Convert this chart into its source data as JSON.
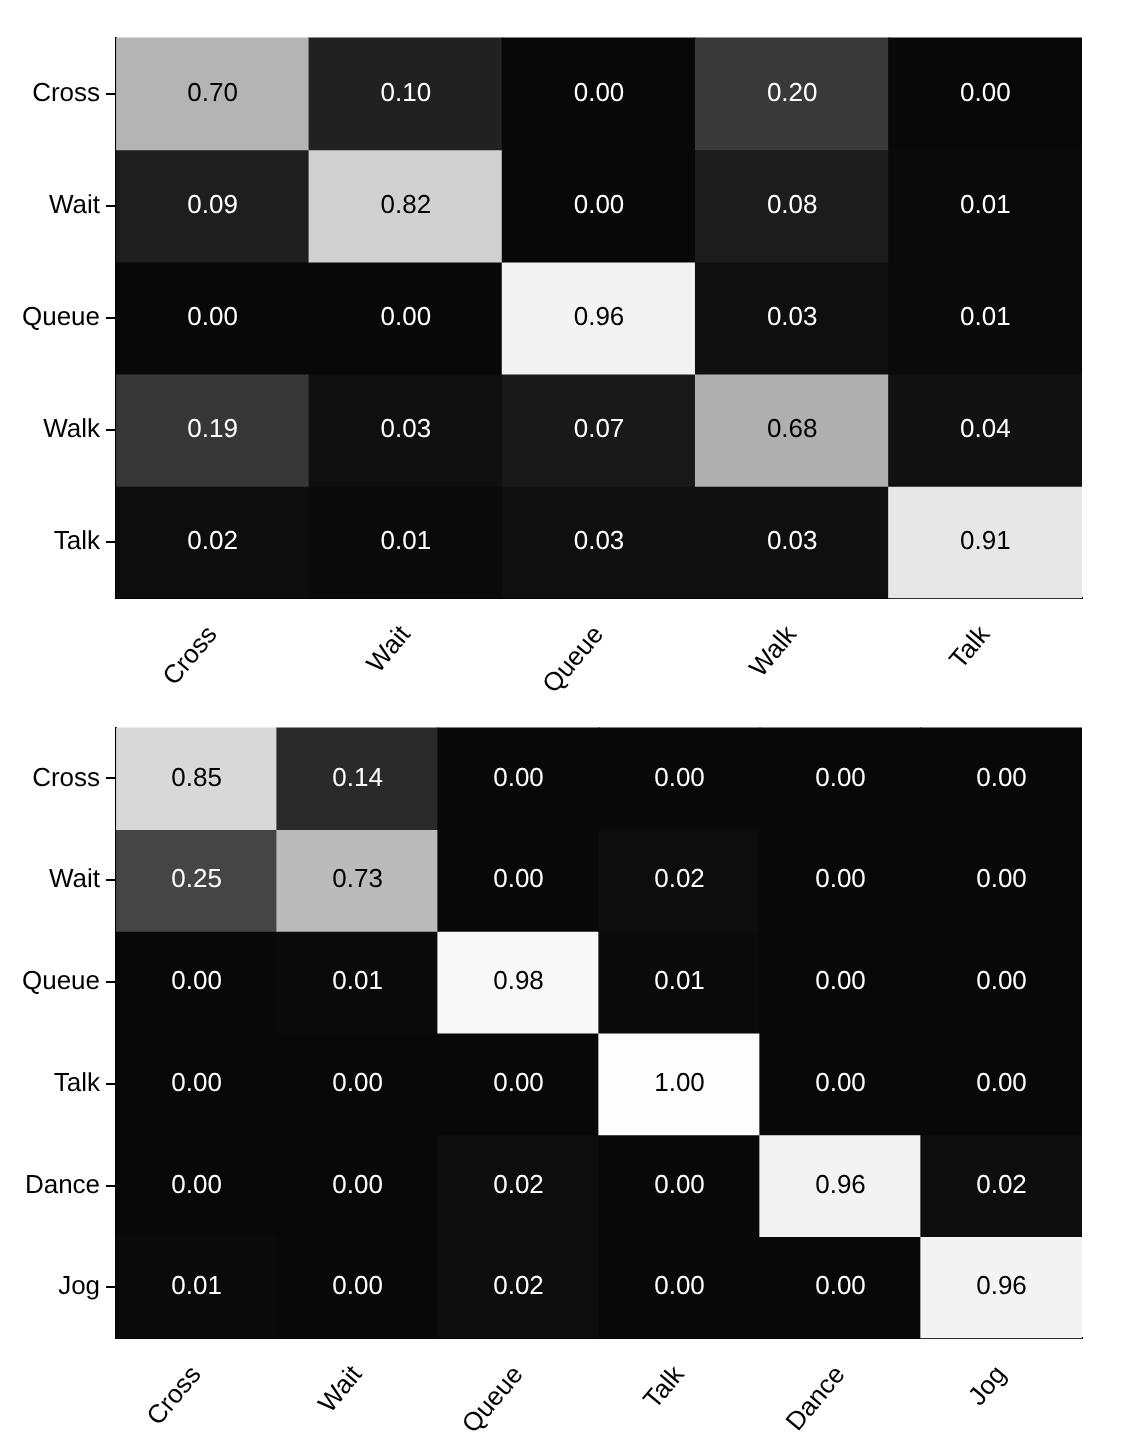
{
  "chart_data": [
    {
      "type": "heatmap",
      "categories": [
        "Cross",
        "Wait",
        "Queue",
        "Walk",
        "Talk"
      ],
      "y_categories": [
        "Cross",
        "Wait",
        "Queue",
        "Walk",
        "Talk"
      ],
      "cells": [
        [
          0.7,
          0.1,
          0.0,
          0.2,
          0.0
        ],
        [
          0.09,
          0.82,
          0.0,
          0.08,
          0.01
        ],
        [
          0.0,
          0.0,
          0.96,
          0.03,
          0.01
        ],
        [
          0.19,
          0.03,
          0.07,
          0.68,
          0.04
        ],
        [
          0.02,
          0.01,
          0.03,
          0.03,
          0.91
        ]
      ],
      "cell_labels": [
        [
          "0.70",
          "0.10",
          "0.00",
          "0.20",
          "0.00"
        ],
        [
          "0.09",
          "0.82",
          "0.00",
          "0.08",
          "0.01"
        ],
        [
          "0.00",
          "0.00",
          "0.96",
          "0.03",
          "0.01"
        ],
        [
          "0.19",
          "0.03",
          "0.07",
          "0.68",
          "0.04"
        ],
        [
          "0.02",
          "0.01",
          "0.03",
          "0.03",
          "0.91"
        ]
      ]
    },
    {
      "type": "heatmap",
      "categories": [
        "Cross",
        "Wait",
        "Queue",
        "Talk",
        "Dance",
        "Jog"
      ],
      "y_categories": [
        "Cross",
        "Wait",
        "Queue",
        "Talk",
        "Dance",
        "Jog"
      ],
      "cells": [
        [
          0.85,
          0.14,
          0.0,
          0.0,
          0.0,
          0.0
        ],
        [
          0.25,
          0.73,
          0.0,
          0.02,
          0.0,
          0.0
        ],
        [
          0.0,
          0.01,
          0.98,
          0.01,
          0.0,
          0.0
        ],
        [
          0.0,
          0.0,
          0.0,
          1.0,
          0.0,
          0.0
        ],
        [
          0.0,
          0.0,
          0.02,
          0.0,
          0.96,
          0.02
        ],
        [
          0.01,
          0.0,
          0.02,
          0.0,
          0.0,
          0.96
        ]
      ],
      "cell_labels": [
        [
          "0.85",
          "0.14",
          "0.00",
          "0.00",
          "0.00",
          "0.00"
        ],
        [
          "0.25",
          "0.73",
          "0.00",
          "0.02",
          "0.00",
          "0.00"
        ],
        [
          "0.00",
          "0.01",
          "0.98",
          "0.01",
          "0.00",
          "0.00"
        ],
        [
          "0.00",
          "0.00",
          "0.00",
          "1.00",
          "0.00",
          "0.00"
        ],
        [
          "0.00",
          "0.00",
          "0.02",
          "0.00",
          "0.96",
          "0.02"
        ],
        [
          "0.01",
          "0.00",
          "0.02",
          "0.00",
          "0.00",
          "0.96"
        ]
      ]
    }
  ]
}
